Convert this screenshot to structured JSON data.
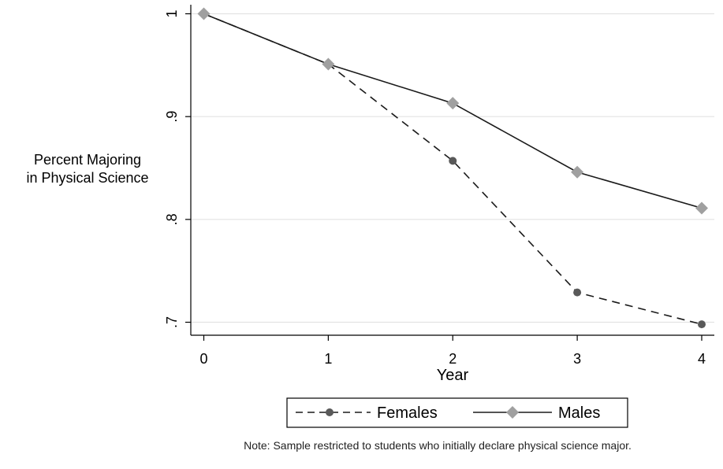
{
  "chart_data": {
    "type": "line",
    "ylabel": [
      "Percent Majoring",
      "in Physical Science"
    ],
    "xlabel": "Year",
    "x": [
      0,
      1,
      2,
      3,
      4
    ],
    "xticks": [
      "0",
      "1",
      "2",
      "3",
      "4"
    ],
    "yticks": [
      ".7",
      ".8",
      ".9",
      "1"
    ],
    "ylim": [
      0.69,
      1.0
    ],
    "xlim": [
      -0.1,
      4.1
    ],
    "grid": true,
    "legend_placement": "bottom",
    "series": [
      {
        "name": "Females",
        "values": [
          1.0,
          0.951,
          0.857,
          0.729,
          0.698
        ],
        "color": "#595959",
        "line_style": "dashed",
        "marker": "circle"
      },
      {
        "name": "Males",
        "values": [
          1.0,
          0.951,
          0.913,
          0.846,
          0.811
        ],
        "color": "#a0a0a0",
        "line_color": "#1a1a1a",
        "line_style": "solid",
        "marker": "diamond"
      }
    ],
    "note": "Note: Sample restricted to students who initially declare physical science major."
  }
}
